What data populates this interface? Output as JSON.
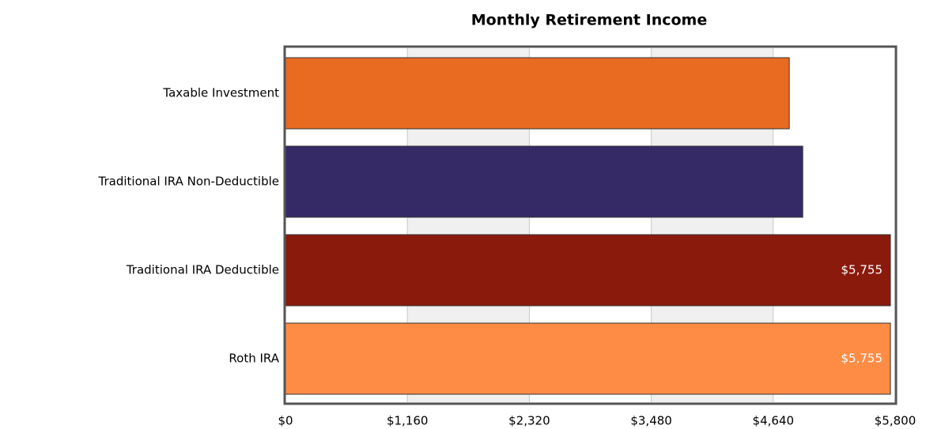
{
  "chart_data": {
    "type": "hbar",
    "title": "Monthly Retirement Income",
    "categories": [
      "Taxable Investment",
      "Traditional IRA Non-Deductible",
      "Traditional IRA Deductible",
      "Roth IRA"
    ],
    "values": [
      4793,
      4921,
      5755,
      5755
    ],
    "value_labels": [
      null,
      null,
      "$5,755",
      "$5,755"
    ],
    "colors": [
      "#e96a21",
      "#352a66",
      "#8a1a0c",
      "#ff8c45"
    ],
    "xlim": [
      0,
      5800
    ],
    "xticks": [
      {
        "value": 0,
        "label": "$0"
      },
      {
        "value": 1160,
        "label": "$1,160"
      },
      {
        "value": 2320,
        "label": "$2,320"
      },
      {
        "value": 3480,
        "label": "$3,480"
      },
      {
        "value": 4640,
        "label": "$4,640"
      },
      {
        "value": 5800,
        "label": "$5,800"
      }
    ],
    "grid": true
  }
}
